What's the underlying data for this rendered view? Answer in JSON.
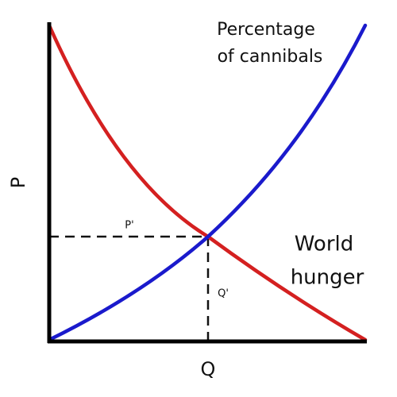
{
  "axes": {
    "y_label": "P",
    "x_label": "Q"
  },
  "markers": {
    "p_prime": "P'",
    "q_prime": "Q'"
  },
  "curves": {
    "rising": {
      "label_lines": [
        "Percentage",
        "of cannibals"
      ]
    },
    "falling": {
      "label_lines": [
        "World",
        "hunger"
      ]
    }
  }
}
